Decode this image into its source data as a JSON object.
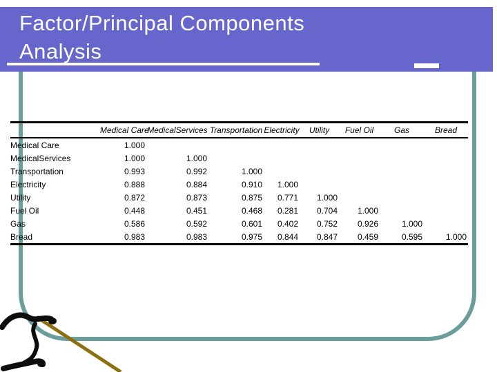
{
  "slide": {
    "title": {
      "line1": "Factor/Principal Components",
      "line2": "Analysis"
    }
  },
  "table": {
    "corner_label": "",
    "columns": [
      "Medical Care",
      "MedicalServices",
      "Transportation",
      "Electricity",
      "Utility",
      "Fuel Oil",
      "Gas",
      "Bread"
    ],
    "rows": [
      {
        "label": "Medical Care",
        "values": [
          "1.000",
          "",
          "",
          "",
          "",
          "",
          "",
          ""
        ]
      },
      {
        "label": "MedicalServices",
        "values": [
          "1.000",
          "1.000",
          "",
          "",
          "",
          "",
          "",
          ""
        ]
      },
      {
        "label": "Transportation",
        "values": [
          "0.993",
          "0.992",
          "1.000",
          "",
          "",
          "",
          "",
          ""
        ]
      },
      {
        "label": "Electricity",
        "values": [
          "0.888",
          "0.884",
          "0.910",
          "1.000",
          "",
          "",
          "",
          ""
        ]
      },
      {
        "label": "Utility",
        "values": [
          "0.872",
          "0.873",
          "0.875",
          "0.771",
          "1.000",
          "",
          "",
          ""
        ]
      },
      {
        "label": "Fuel Oil",
        "values": [
          "0.448",
          "0.451",
          "0.468",
          "0.281",
          "0.704",
          "1.000",
          "",
          ""
        ]
      },
      {
        "label": "Gas",
        "values": [
          "0.586",
          "0.592",
          "0.601",
          "0.402",
          "0.752",
          "0.926",
          "1.000",
          ""
        ]
      },
      {
        "label": "Bread",
        "values": [
          "0.983",
          "0.983",
          "0.975",
          "0.844",
          "0.847",
          "0.459",
          "0.595",
          "1.000"
        ]
      }
    ]
  },
  "colors": {
    "title_bar": "#6666cc",
    "title_text": "#ffffff",
    "frame": "#6b9e9b",
    "glyph": "#0d0d0d",
    "glyph_slash": "#8e6f10",
    "table_text": "#000000"
  },
  "decoration": {
    "glyph_name": "integral-swash"
  }
}
